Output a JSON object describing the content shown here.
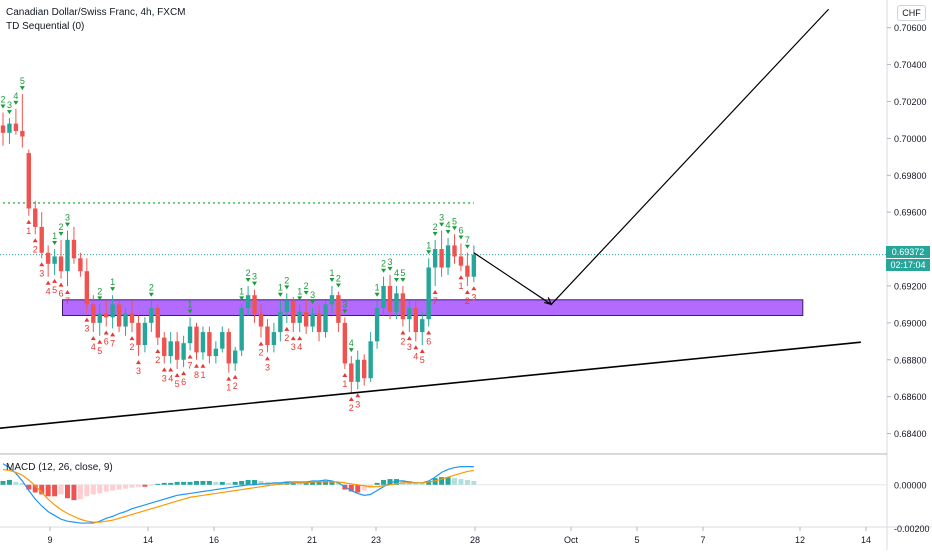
{
  "header": {
    "symbol_line": "Canadian Dollar/Swiss Franc, 4h, FXCM",
    "indicator_line": "TD Sequential (0)",
    "currency_button": "CHF"
  },
  "macd": {
    "label": "MACD (12, 26, close, 9)"
  },
  "price_axis": {
    "current_price": "0.69372",
    "countdown": "02:17:04"
  },
  "colors": {
    "up": "#26a69a",
    "down": "#ef5350",
    "setup_up": "#1a9c3c",
    "setup_down": "#e53935",
    "zone_fill": "#b36bff",
    "resistance_dotted": "#2bb54a",
    "macd_line": "#2196f3",
    "signal_line": "#ff9800"
  },
  "chart_data": {
    "type": "candlestick",
    "title": "Canadian Dollar/Swiss Franc, 4h, FXCM",
    "ylim": [
      0.683,
      0.7075
    ],
    "yticks": [
      0.684,
      0.686,
      0.688,
      0.69,
      0.692,
      0.694,
      0.696,
      0.698,
      0.7,
      0.702,
      0.704,
      0.706
    ],
    "xticks": [
      "9",
      "14",
      "16",
      "21",
      "23",
      "28",
      "Oct",
      "5",
      "7",
      "12",
      "14"
    ],
    "candles": [
      [
        0.7007,
        0.7014,
        0.6996,
        0.7003
      ],
      [
        0.7003,
        0.7011,
        0.6997,
        0.7008
      ],
      [
        0.7008,
        0.7016,
        0.7002,
        0.7004
      ],
      [
        0.7004,
        0.7024,
        0.6995,
        0.7001
      ],
      [
        0.6992,
        0.6994,
        0.6958,
        0.6962
      ],
      [
        0.6962,
        0.6966,
        0.6948,
        0.6952
      ],
      [
        0.6952,
        0.696,
        0.6935,
        0.6938
      ],
      [
        0.6938,
        0.6942,
        0.6925,
        0.6932
      ],
      [
        0.6932,
        0.694,
        0.6926,
        0.6936
      ],
      [
        0.6936,
        0.6945,
        0.6924,
        0.6928
      ],
      [
        0.6928,
        0.695,
        0.692,
        0.6945
      ],
      [
        0.6945,
        0.6952,
        0.6932,
        0.6935
      ],
      [
        0.6935,
        0.6938,
        0.6925,
        0.6928
      ],
      [
        0.6928,
        0.6935,
        0.6905,
        0.691
      ],
      [
        0.691,
        0.6915,
        0.6895,
        0.69
      ],
      [
        0.69,
        0.691,
        0.6893,
        0.6905
      ],
      [
        0.6905,
        0.6912,
        0.6898,
        0.6903
      ],
      [
        0.6903,
        0.6915,
        0.6897,
        0.691
      ],
      [
        0.691,
        0.6912,
        0.6895,
        0.6898
      ],
      [
        0.6898,
        0.6908,
        0.6893,
        0.6905
      ],
      [
        0.6905,
        0.6912,
        0.6895,
        0.69
      ],
      [
        0.69,
        0.6904,
        0.6882,
        0.6888
      ],
      [
        0.6888,
        0.6903,
        0.6884,
        0.69
      ],
      [
        0.69,
        0.6912,
        0.6895,
        0.6908
      ],
      [
        0.6908,
        0.691,
        0.6888,
        0.6892
      ],
      [
        0.6892,
        0.6895,
        0.6878,
        0.6882
      ],
      [
        0.6882,
        0.6895,
        0.6878,
        0.689
      ],
      [
        0.689,
        0.6895,
        0.6875,
        0.688
      ],
      [
        0.688,
        0.6893,
        0.6876,
        0.6889
      ],
      [
        0.6889,
        0.6903,
        0.6885,
        0.6898
      ],
      [
        0.6898,
        0.69,
        0.688,
        0.6884
      ],
      [
        0.6884,
        0.6898,
        0.688,
        0.6895
      ],
      [
        0.6895,
        0.6898,
        0.6878,
        0.6882
      ],
      [
        0.6882,
        0.689,
        0.6878,
        0.6886
      ],
      [
        0.6886,
        0.6898,
        0.6884,
        0.6895
      ],
      [
        0.6895,
        0.6897,
        0.6873,
        0.6878
      ],
      [
        0.6878,
        0.6887,
        0.6874,
        0.6885
      ],
      [
        0.6885,
        0.691,
        0.6882,
        0.6908
      ],
      [
        0.6908,
        0.692,
        0.6904,
        0.6915
      ],
      [
        0.6915,
        0.6918,
        0.69,
        0.6905
      ],
      [
        0.6905,
        0.691,
        0.6892,
        0.6898
      ],
      [
        0.6898,
        0.6902,
        0.6884,
        0.6888
      ],
      [
        0.6888,
        0.69,
        0.6884,
        0.6895
      ],
      [
        0.6895,
        0.6912,
        0.689,
        0.6906
      ],
      [
        0.6906,
        0.6916,
        0.69,
        0.6912
      ],
      [
        0.6912,
        0.6914,
        0.6895,
        0.69
      ],
      [
        0.69,
        0.691,
        0.6895,
        0.6906
      ],
      [
        0.6906,
        0.6913,
        0.6894,
        0.6898
      ],
      [
        0.6898,
        0.6908,
        0.6895,
        0.6905
      ],
      [
        0.6905,
        0.691,
        0.689,
        0.6895
      ],
      [
        0.6895,
        0.6912,
        0.6892,
        0.691
      ],
      [
        0.691,
        0.692,
        0.6905,
        0.6915
      ],
      [
        0.6915,
        0.6917,
        0.6895,
        0.69
      ],
      [
        0.69,
        0.6903,
        0.6875,
        0.6878
      ],
      [
        0.6878,
        0.6882,
        0.6862,
        0.6868
      ],
      [
        0.6868,
        0.6885,
        0.6864,
        0.688
      ],
      [
        0.688,
        0.6883,
        0.6866,
        0.687
      ],
      [
        0.687,
        0.6895,
        0.6868,
        0.689
      ],
      [
        0.689,
        0.6912,
        0.6886,
        0.6908
      ],
      [
        0.6908,
        0.6925,
        0.6904,
        0.692
      ],
      [
        0.692,
        0.6926,
        0.6902,
        0.6906
      ],
      [
        0.6906,
        0.692,
        0.6902,
        0.6916
      ],
      [
        0.6916,
        0.692,
        0.6898,
        0.6902
      ],
      [
        0.6902,
        0.6912,
        0.6895,
        0.6908
      ],
      [
        0.6908,
        0.6912,
        0.689,
        0.6895
      ],
      [
        0.6895,
        0.6906,
        0.6888,
        0.6902
      ],
      [
        0.6902,
        0.6935,
        0.6898,
        0.693
      ],
      [
        0.693,
        0.6945,
        0.692,
        0.694
      ],
      [
        0.694,
        0.695,
        0.6925,
        0.693
      ],
      [
        0.693,
        0.6946,
        0.6926,
        0.6942
      ],
      [
        0.6942,
        0.6948,
        0.6932,
        0.6936
      ],
      [
        0.6936,
        0.6943,
        0.6928,
        0.6931
      ],
      [
        0.6931,
        0.6938,
        0.692,
        0.6925
      ],
      [
        0.6925,
        0.6942,
        0.6922,
        0.6937
      ]
    ],
    "setup_labels_up": [
      {
        "i": 0,
        "t": "2"
      },
      {
        "i": 1,
        "t": "3"
      },
      {
        "i": 2,
        "t": "4"
      },
      {
        "i": 3,
        "t": "5"
      },
      {
        "i": 8,
        "t": "1"
      },
      {
        "i": 9,
        "t": "2"
      },
      {
        "i": 10,
        "t": "3"
      },
      {
        "i": 15,
        "t": "2"
      },
      {
        "i": 17,
        "t": "1"
      },
      {
        "i": 23,
        "t": "2"
      },
      {
        "i": 29,
        "t": "1"
      },
      {
        "i": 37,
        "t": "1"
      },
      {
        "i": 38,
        "t": "2"
      },
      {
        "i": 39,
        "t": "3"
      },
      {
        "i": 43,
        "t": "1"
      },
      {
        "i": 44,
        "t": "2"
      },
      {
        "i": 46,
        "t": "1"
      },
      {
        "i": 47,
        "t": "2"
      },
      {
        "i": 48,
        "t": "3"
      },
      {
        "i": 51,
        "t": "1"
      },
      {
        "i": 52,
        "t": "2"
      },
      {
        "i": 53,
        "t": "3"
      },
      {
        "i": 54,
        "t": "4"
      },
      {
        "i": 58,
        "t": "1"
      },
      {
        "i": 59,
        "t": "2"
      },
      {
        "i": 60,
        "t": "3"
      },
      {
        "i": 61,
        "t": "4"
      },
      {
        "i": 62,
        "t": "5"
      },
      {
        "i": 66,
        "t": "1"
      },
      {
        "i": 67,
        "t": "2"
      },
      {
        "i": 68,
        "t": "3"
      },
      {
        "i": 69,
        "t": "4"
      },
      {
        "i": 70,
        "t": "5"
      },
      {
        "i": 71,
        "t": "6"
      },
      {
        "i": 72,
        "t": "7"
      }
    ],
    "setup_labels_down": [
      {
        "i": 4,
        "t": "1"
      },
      {
        "i": 5,
        "t": "2"
      },
      {
        "i": 6,
        "t": "3"
      },
      {
        "i": 7,
        "t": "4"
      },
      {
        "i": 8,
        "t": "5"
      },
      {
        "i": 9,
        "t": "6"
      },
      {
        "i": 10,
        "t": "7"
      },
      {
        "i": 13,
        "t": "3"
      },
      {
        "i": 14,
        "t": "4"
      },
      {
        "i": 15,
        "t": "5"
      },
      {
        "i": 16,
        "t": "6"
      },
      {
        "i": 17,
        "t": "7"
      },
      {
        "i": 20,
        "t": "2"
      },
      {
        "i": 21,
        "t": "3"
      },
      {
        "i": 24,
        "t": "2"
      },
      {
        "i": 25,
        "t": "3"
      },
      {
        "i": 26,
        "t": "4"
      },
      {
        "i": 27,
        "t": "5"
      },
      {
        "i": 28,
        "t": "6"
      },
      {
        "i": 29,
        "t": "7"
      },
      {
        "i": 30,
        "t": "8"
      },
      {
        "i": 31,
        "t": "1"
      },
      {
        "i": 35,
        "t": "1"
      },
      {
        "i": 36,
        "t": "2"
      },
      {
        "i": 40,
        "t": "2"
      },
      {
        "i": 41,
        "t": "3"
      },
      {
        "i": 44,
        "t": "2"
      },
      {
        "i": 45,
        "t": "3"
      },
      {
        "i": 46,
        "t": "4"
      },
      {
        "i": 53,
        "t": "1"
      },
      {
        "i": 54,
        "t": "2"
      },
      {
        "i": 55,
        "t": "3"
      },
      {
        "i": 62,
        "t": "2"
      },
      {
        "i": 63,
        "t": "3"
      },
      {
        "i": 64,
        "t": "4"
      },
      {
        "i": 65,
        "t": "5"
      },
      {
        "i": 66,
        "t": "6"
      },
      {
        "i": 67,
        "t": "7"
      },
      {
        "i": 71,
        "t": "1"
      },
      {
        "i": 72,
        "t": "2"
      },
      {
        "i": 73,
        "t": "3"
      }
    ],
    "support_zone": {
      "from_index": 10,
      "to_index": 124,
      "low": 0.6904,
      "high": 0.69125
    },
    "dotted_level": {
      "price": 0.6965,
      "from_index": 0,
      "to_index": 73
    },
    "trendline": {
      "x1_index": -3,
      "y1": 0.6842,
      "x2_index": 133,
      "y2": 0.68895
    },
    "projection_path": [
      [
        73,
        0.6938
      ],
      [
        85,
        0.691
      ],
      [
        128,
        0.707
      ]
    ],
    "macd_series": {
      "hist": [
        4,
        5,
        3,
        2,
        -5,
        -8,
        -10,
        -12,
        -12,
        -10,
        -14,
        -16,
        -15,
        -12,
        -10,
        -9,
        -7,
        -6,
        -5,
        -4,
        -3,
        -2,
        -2,
        -1,
        1,
        2,
        2,
        3,
        3,
        3,
        4,
        4,
        4,
        3,
        3,
        2,
        3,
        4,
        5,
        5,
        4,
        3,
        2,
        2,
        3,
        3,
        2,
        2,
        3,
        3,
        4,
        4,
        3,
        -5,
        -7,
        -8,
        -6,
        -3,
        2,
        5,
        6,
        6,
        5,
        4,
        3,
        2,
        4,
        7,
        8,
        8,
        7,
        6,
        5,
        4
      ],
      "macd": [
        22,
        18,
        12,
        4,
        -6,
        -15,
        -22,
        -28,
        -32,
        -36,
        -38,
        -39,
        -40,
        -40,
        -40,
        -38,
        -35,
        -33,
        -30,
        -28,
        -25,
        -23,
        -21,
        -19,
        -17,
        -15,
        -13,
        -11,
        -10,
        -9,
        -8,
        -7,
        -6,
        -5,
        -4,
        -3,
        -2,
        -1,
        0,
        0,
        1,
        1,
        2,
        2,
        3,
        3,
        3,
        3,
        4,
        4,
        5,
        4,
        2,
        -2,
        -6,
        -9,
        -11,
        -10,
        -6,
        -2,
        2,
        4,
        4,
        3,
        2,
        2,
        4,
        8,
        13,
        16,
        18,
        19,
        19,
        19
      ],
      "signal": [
        16,
        15,
        13,
        10,
        5,
        -1,
        -8,
        -15,
        -21,
        -26,
        -30,
        -33,
        -36,
        -38,
        -39,
        -39,
        -38,
        -37,
        -35,
        -33,
        -31,
        -29,
        -27,
        -25,
        -23,
        -21,
        -19,
        -17,
        -15,
        -13,
        -12,
        -11,
        -10,
        -9,
        -8,
        -7,
        -6,
        -5,
        -4,
        -3,
        -2,
        -1,
        0,
        1,
        1,
        2,
        2,
        2,
        3,
        3,
        3,
        3,
        3,
        2,
        1,
        0,
        -1,
        -2,
        -2,
        -1,
        0,
        1,
        2,
        2,
        2,
        2,
        3,
        4,
        6,
        8,
        10,
        12,
        14,
        15
      ],
      "ylim": [
        -42,
        28
      ],
      "axis_label": "0.00000",
      "bottom_label": "-0.00200"
    }
  }
}
